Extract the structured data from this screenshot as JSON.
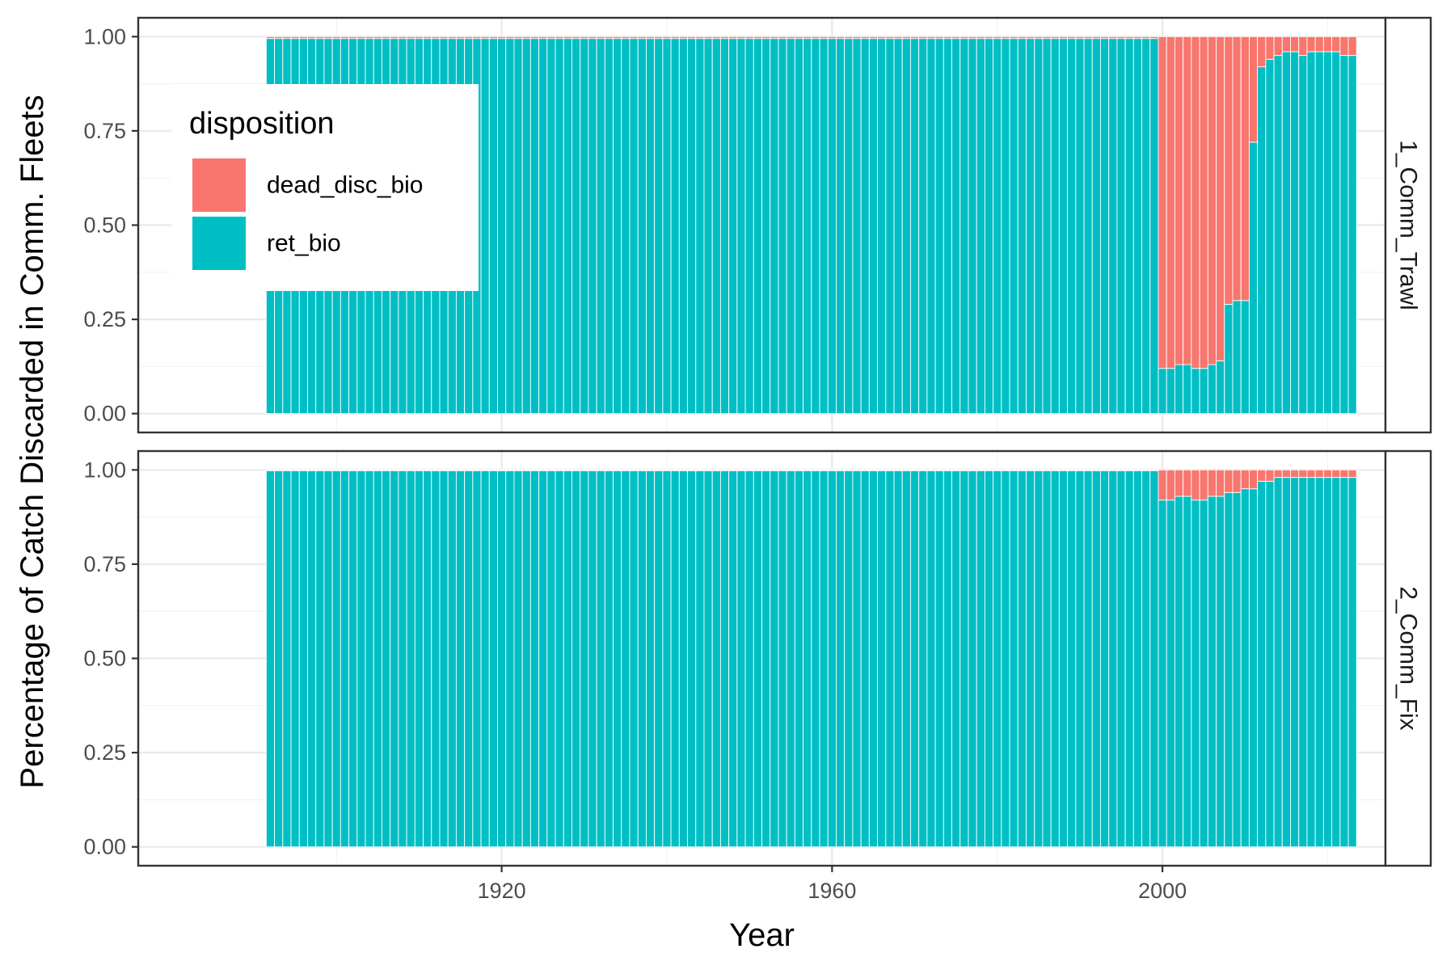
{
  "chart_data": {
    "type": "bar",
    "stacked": true,
    "xlabel": "Year",
    "ylabel": "Percentage of Catch Discarded in Comm. Fleets",
    "xlim": [
      1876,
      2027
    ],
    "ylim": [
      -0.05,
      1.05
    ],
    "x_ticks": [
      1920,
      1960,
      2000
    ],
    "y_ticks": [
      "0.00",
      "0.25",
      "0.50",
      "0.75",
      "1.00"
    ],
    "grid": true,
    "years": {
      "start": 1892,
      "end": 2023
    },
    "legend": {
      "title": "disposition",
      "position": "inside-top-left",
      "entries": [
        {
          "name": "dead_disc_bio",
          "color": "#F8766D"
        },
        {
          "name": "ret_bio",
          "color": "#00BFC4"
        }
      ]
    },
    "colors": {
      "dead_disc_bio": "#F8766D",
      "ret_bio": "#00BFC4"
    },
    "panels": [
      {
        "strip": "1_Comm_Trawl",
        "baseline_ret_bio": 0.995,
        "ret_bio_overrides": {
          "2000": 0.12,
          "2001": 0.12,
          "2002": 0.13,
          "2003": 0.13,
          "2004": 0.12,
          "2005": 0.12,
          "2006": 0.13,
          "2007": 0.14,
          "2008": 0.29,
          "2009": 0.3,
          "2010": 0.3,
          "2011": 0.72,
          "2012": 0.92,
          "2013": 0.94,
          "2014": 0.95,
          "2015": 0.96,
          "2016": 0.96,
          "2017": 0.95,
          "2018": 0.96,
          "2019": 0.96,
          "2020": 0.96,
          "2021": 0.96,
          "2022": 0.95,
          "2023": 0.95
        }
      },
      {
        "strip": "2_Comm_Fix",
        "baseline_ret_bio": 0.998,
        "ret_bio_overrides": {
          "2000": 0.92,
          "2001": 0.92,
          "2002": 0.93,
          "2003": 0.93,
          "2004": 0.92,
          "2005": 0.92,
          "2006": 0.93,
          "2007": 0.93,
          "2008": 0.94,
          "2009": 0.94,
          "2010": 0.95,
          "2011": 0.95,
          "2012": 0.97,
          "2013": 0.97,
          "2014": 0.98,
          "2015": 0.98,
          "2016": 0.98,
          "2017": 0.98,
          "2018": 0.98,
          "2019": 0.98,
          "2020": 0.98,
          "2021": 0.98,
          "2022": 0.98,
          "2023": 0.98
        }
      }
    ]
  }
}
